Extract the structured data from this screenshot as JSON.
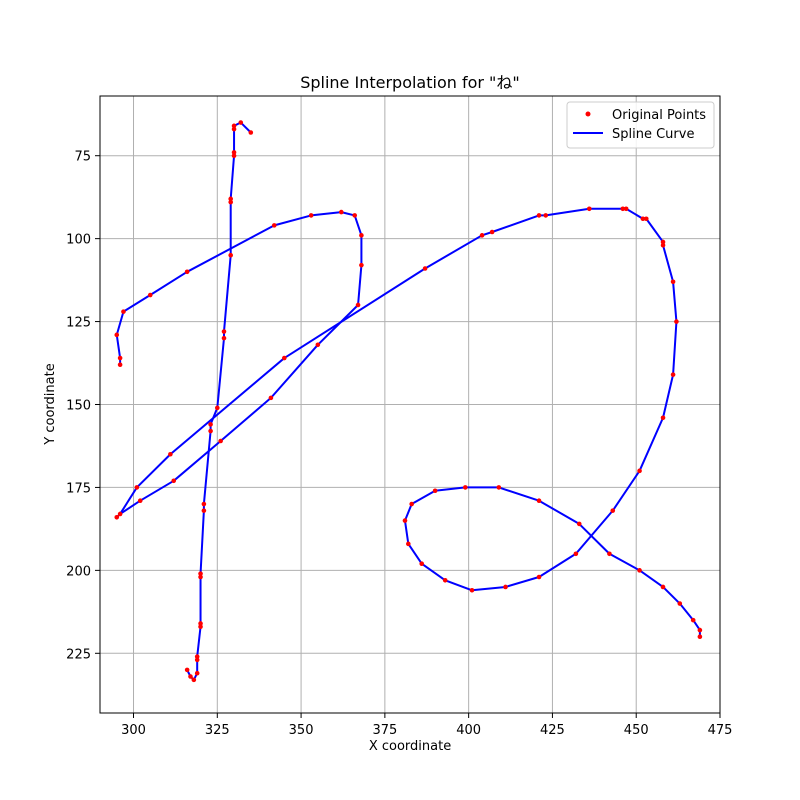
{
  "chart_data": {
    "type": "line",
    "title": "Spline Interpolation for \"ね\"",
    "xlabel": "X coordinate",
    "ylabel": "Y coordinate",
    "xlim": [
      290,
      475
    ],
    "ylim": [
      243,
      57
    ],
    "y_inverted": true,
    "grid": true,
    "legend_placement": "top-right",
    "x_ticks": [
      300,
      325,
      350,
      375,
      400,
      425,
      450,
      475
    ],
    "y_ticks": [
      75,
      100,
      125,
      150,
      175,
      200,
      225
    ],
    "series": [
      {
        "name": "Original Points",
        "kind": "scatter",
        "color": "#ff0000",
        "points": [
          [
            335,
            68
          ],
          [
            332,
            65
          ],
          [
            330,
            66
          ],
          [
            330,
            67
          ],
          [
            330,
            74
          ],
          [
            330,
            75
          ],
          [
            329,
            88
          ],
          [
            329,
            89
          ],
          [
            329,
            105
          ],
          [
            327,
            128
          ],
          [
            327,
            130
          ],
          [
            325,
            151
          ],
          [
            323,
            156
          ],
          [
            323,
            158
          ],
          [
            321,
            180
          ],
          [
            321,
            182
          ],
          [
            320,
            201
          ],
          [
            320,
            202
          ],
          [
            320,
            216
          ],
          [
            320,
            217
          ],
          [
            319,
            226
          ],
          [
            319,
            227
          ],
          [
            319,
            231
          ],
          [
            318,
            233
          ],
          [
            317,
            232
          ],
          [
            316,
            230
          ],
          [
            296,
            138
          ],
          [
            296,
            136
          ],
          [
            295,
            129
          ],
          [
            297,
            122
          ],
          [
            305,
            117
          ],
          [
            316,
            110
          ],
          [
            342,
            96
          ],
          [
            353,
            93
          ],
          [
            362,
            92
          ],
          [
            366,
            93
          ],
          [
            368,
            99
          ],
          [
            368,
            108
          ],
          [
            367,
            120
          ],
          [
            355,
            132
          ],
          [
            341,
            148
          ],
          [
            326,
            161
          ],
          [
            312,
            173
          ],
          [
            302,
            179
          ],
          [
            296,
            183
          ],
          [
            295,
            184
          ],
          [
            301,
            175
          ],
          [
            311,
            165
          ],
          [
            345,
            136
          ],
          [
            387,
            109
          ],
          [
            404,
            99
          ],
          [
            407,
            98
          ],
          [
            421,
            93
          ],
          [
            423,
            93
          ],
          [
            436,
            91
          ],
          [
            446,
            91
          ],
          [
            447,
            91
          ],
          [
            452,
            94
          ],
          [
            453,
            94
          ],
          [
            458,
            101
          ],
          [
            458,
            102
          ],
          [
            461,
            113
          ],
          [
            462,
            125
          ],
          [
            461,
            141
          ],
          [
            458,
            154
          ],
          [
            451,
            170
          ],
          [
            443,
            182
          ],
          [
            432,
            195
          ],
          [
            421,
            202
          ],
          [
            411,
            205
          ],
          [
            401,
            206
          ],
          [
            393,
            203
          ],
          [
            386,
            198
          ],
          [
            382,
            192
          ],
          [
            381,
            185
          ],
          [
            383,
            180
          ],
          [
            390,
            176
          ],
          [
            399,
            175
          ],
          [
            409,
            175
          ],
          [
            421,
            179
          ],
          [
            433,
            186
          ],
          [
            442,
            195
          ],
          [
            451,
            200
          ],
          [
            458,
            205
          ],
          [
            463,
            210
          ],
          [
            467,
            215
          ],
          [
            469,
            218
          ],
          [
            469,
            220
          ]
        ]
      },
      {
        "name": "Spline Curve",
        "kind": "line",
        "color": "#0000ff",
        "strokes": [
          [
            [
              335,
              68
            ],
            [
              332,
              65
            ],
            [
              330,
              66
            ],
            [
              330,
              67
            ],
            [
              330,
              74
            ],
            [
              330,
              75
            ],
            [
              329,
              88
            ],
            [
              329,
              89
            ],
            [
              329,
              105
            ],
            [
              327,
              128
            ],
            [
              327,
              130
            ],
            [
              325,
              151
            ],
            [
              323,
              156
            ],
            [
              323,
              158
            ],
            [
              321,
              180
            ],
            [
              321,
              182
            ],
            [
              320,
              201
            ],
            [
              320,
              202
            ],
            [
              320,
              216
            ],
            [
              320,
              217
            ],
            [
              319,
              226
            ],
            [
              319,
              227
            ],
            [
              319,
              231
            ],
            [
              318,
              233
            ],
            [
              317,
              232
            ],
            [
              316,
              230
            ]
          ],
          [
            [
              296,
              138
            ],
            [
              296,
              136
            ],
            [
              295,
              129
            ],
            [
              297,
              122
            ],
            [
              305,
              117
            ],
            [
              316,
              110
            ],
            [
              342,
              96
            ],
            [
              353,
              93
            ],
            [
              362,
              92
            ],
            [
              366,
              93
            ],
            [
              368,
              99
            ],
            [
              368,
              108
            ],
            [
              367,
              120
            ],
            [
              355,
              132
            ],
            [
              341,
              148
            ],
            [
              326,
              161
            ],
            [
              312,
              173
            ],
            [
              302,
              179
            ],
            [
              296,
              183
            ],
            [
              295,
              184
            ]
          ],
          [
            [
              296,
              183
            ],
            [
              301,
              175
            ],
            [
              311,
              165
            ],
            [
              345,
              136
            ],
            [
              387,
              109
            ],
            [
              404,
              99
            ],
            [
              407,
              98
            ],
            [
              421,
              93
            ],
            [
              423,
              93
            ],
            [
              436,
              91
            ],
            [
              446,
              91
            ],
            [
              447,
              91
            ],
            [
              452,
              94
            ],
            [
              453,
              94
            ],
            [
              458,
              101
            ],
            [
              458,
              102
            ],
            [
              461,
              113
            ],
            [
              462,
              125
            ],
            [
              461,
              141
            ],
            [
              458,
              154
            ],
            [
              451,
              170
            ],
            [
              443,
              182
            ],
            [
              432,
              195
            ],
            [
              421,
              202
            ],
            [
              411,
              205
            ],
            [
              401,
              206
            ],
            [
              393,
              203
            ],
            [
              386,
              198
            ],
            [
              382,
              192
            ],
            [
              381,
              185
            ],
            [
              383,
              180
            ],
            [
              390,
              176
            ],
            [
              399,
              175
            ],
            [
              409,
              175
            ],
            [
              421,
              179
            ],
            [
              433,
              186
            ],
            [
              442,
              195
            ],
            [
              451,
              200
            ],
            [
              458,
              205
            ],
            [
              463,
              210
            ],
            [
              467,
              215
            ],
            [
              469,
              218
            ],
            [
              469,
              220
            ]
          ]
        ]
      }
    ]
  }
}
